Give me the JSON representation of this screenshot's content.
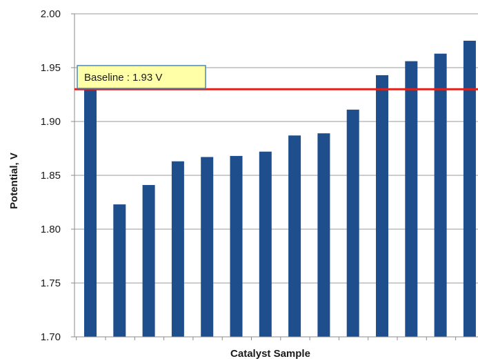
{
  "chart_data": {
    "type": "bar",
    "xlabel": "Catalyst Sample",
    "ylabel": "Potential, V",
    "ylim": [
      1.7,
      2.0
    ],
    "yticks": [
      "1.70",
      "1.75",
      "1.80",
      "1.85",
      "1.90",
      "1.95",
      "2.00"
    ],
    "grid": true,
    "values": [
      1.93,
      1.823,
      1.841,
      1.863,
      1.867,
      1.868,
      1.872,
      1.887,
      1.889,
      1.911,
      1.943,
      1.956,
      1.963,
      1.975
    ],
    "baseline": {
      "label": "Baseline : 1.93 V",
      "value": 1.93
    },
    "colors": {
      "bar": "#1f4e8c",
      "baseline": "#e0201b",
      "annotation_fill": "#ffffa8",
      "annotation_border": "#4a86b8",
      "grid": "#9a9a9a"
    }
  }
}
